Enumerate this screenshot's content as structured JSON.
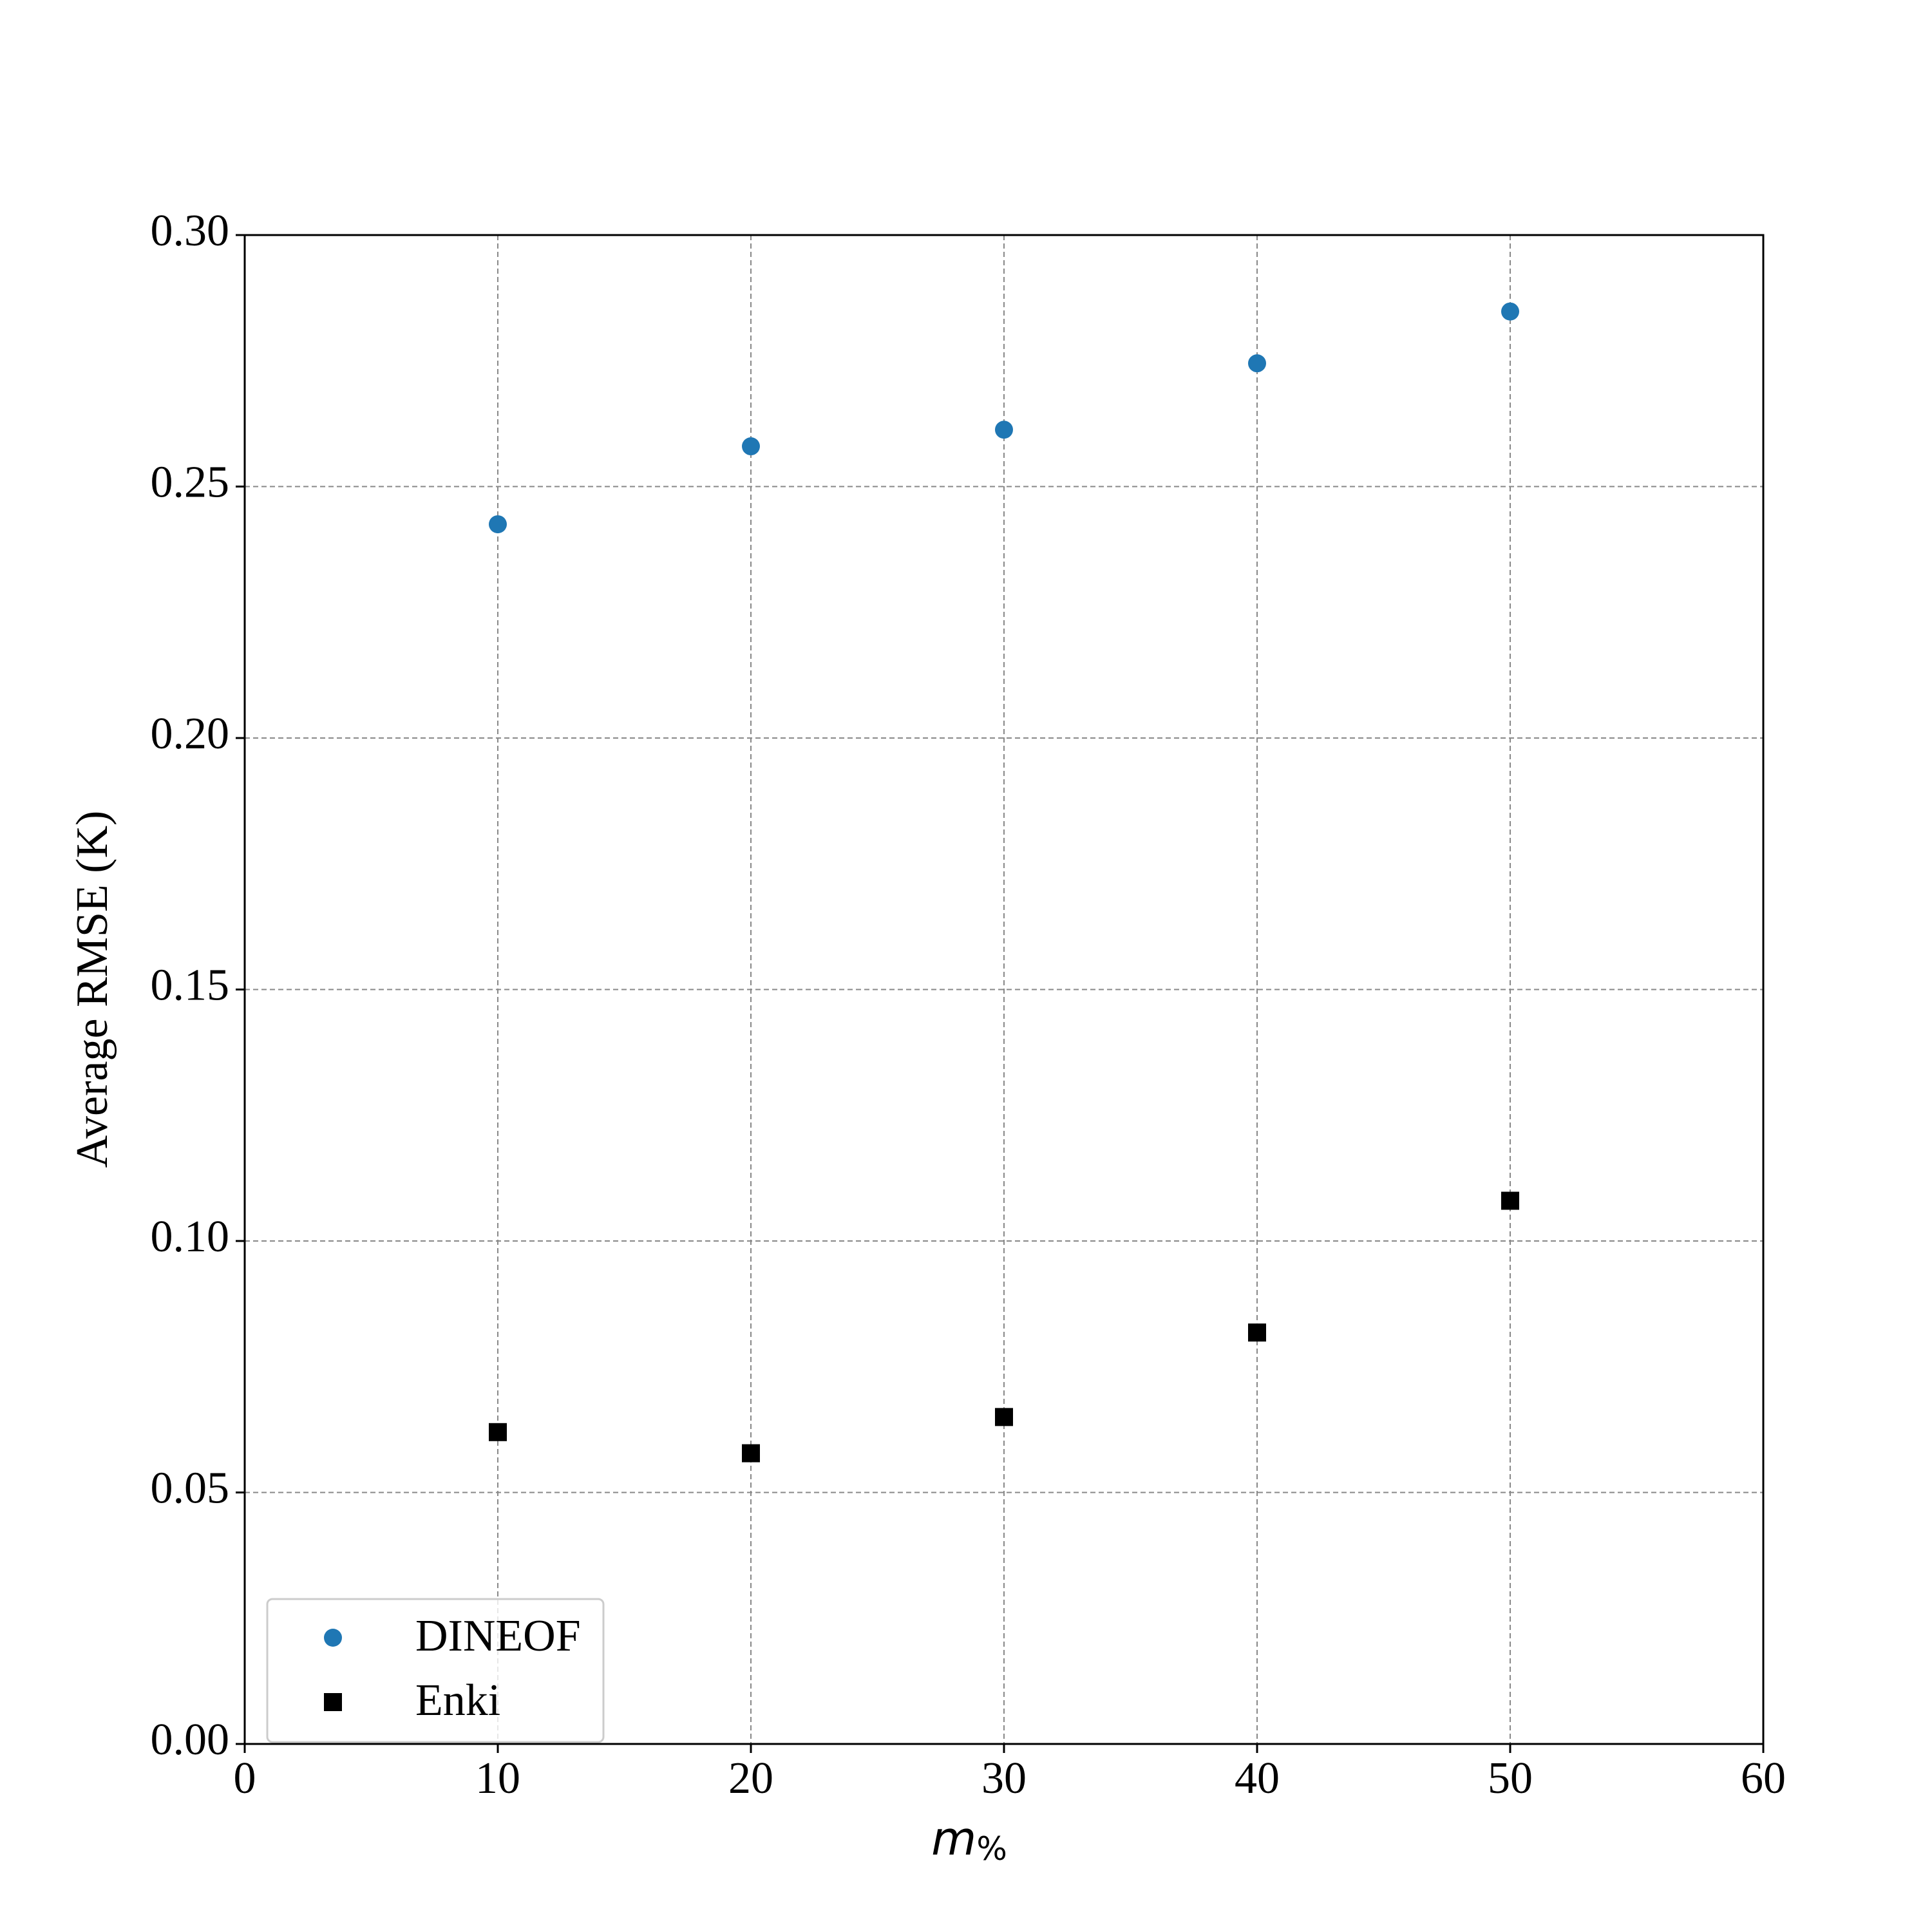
{
  "chart_data": {
    "type": "scatter",
    "xlabel": "m",
    "xlabel_subscript": "%",
    "ylabel": "Average RMSE (K)",
    "xlim": [
      0,
      60
    ],
    "xticks": [
      0,
      10,
      20,
      30,
      40,
      50,
      60
    ],
    "ylim": [
      0,
      0.3
    ],
    "yticks": [
      {
        "value": 0,
        "label": "0.00"
      },
      0.05,
      {
        "value": 0.1,
        "label": "0.10"
      },
      0.15,
      {
        "value": 0.2,
        "label": "0.20"
      },
      0.25,
      {
        "value": 0.3,
        "label": "0.30"
      }
    ],
    "grid": true,
    "legend": "lower left",
    "series": [
      {
        "name": "DINEOF",
        "color": "#1f77b4",
        "marker": "circle",
        "x": [
          10,
          20,
          30,
          40,
          50
        ],
        "values": [
          0.2425,
          0.258,
          0.2613,
          0.2745,
          0.2848
        ]
      },
      {
        "name": "Enki",
        "color": "#000000",
        "marker": "square",
        "x": [
          10,
          20,
          30,
          40,
          50
        ],
        "values": [
          0.062,
          0.0578,
          0.065,
          0.0818,
          0.108
        ]
      }
    ]
  }
}
